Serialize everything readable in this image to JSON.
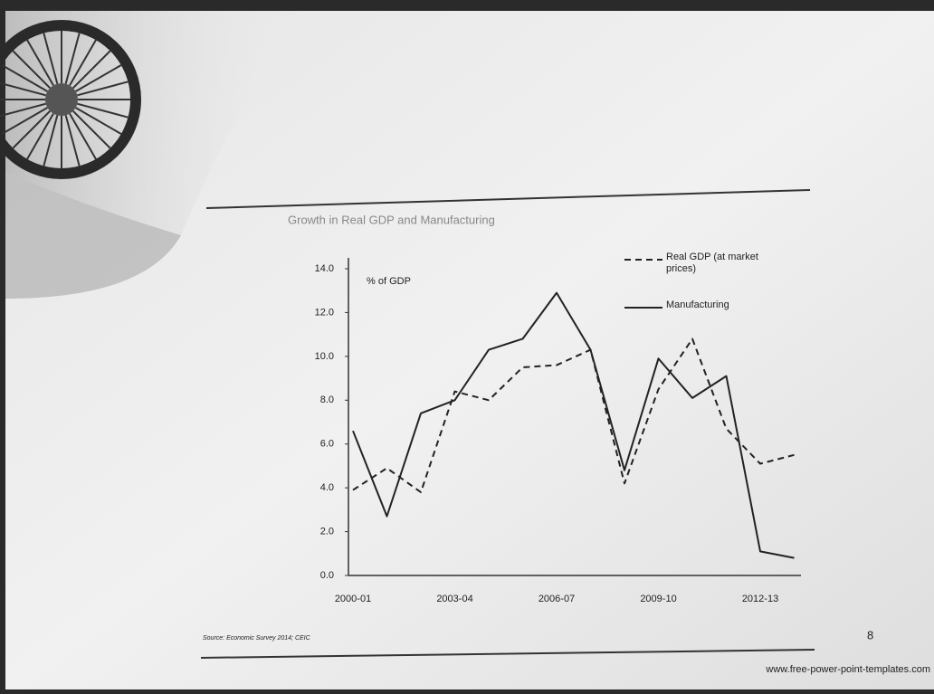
{
  "chart_data": {
    "type": "line",
    "title": "Growth in Real GDP and Manufacturing",
    "y_label": "% of GDP",
    "source": "Source: Economic Survey 2014; CEIC",
    "categories": [
      "2000-01",
      null,
      null,
      "2003-04",
      null,
      null,
      "2006-07",
      null,
      null,
      "2009-10",
      null,
      null,
      "2012-13",
      null
    ],
    "series": [
      {
        "name": "Real GDP (at market prices)",
        "color": "#222222",
        "dash": true,
        "values": [
          3.9,
          4.9,
          3.8,
          8.4,
          8.0,
          9.5,
          9.6,
          10.3,
          4.2,
          8.5,
          10.8,
          6.7,
          5.1,
          5.5
        ]
      },
      {
        "name": "Manufacturing",
        "color": "#222222",
        "dash": false,
        "values": [
          6.6,
          2.7,
          7.4,
          8.0,
          10.3,
          10.8,
          12.9,
          10.3,
          4.8,
          9.9,
          8.1,
          9.1,
          1.1,
          0.8
        ]
      }
    ],
    "ylim": [
      0,
      14
    ],
    "yticks": [
      {
        "value": 0,
        "label": "0.0"
      },
      {
        "value": 2,
        "label": "2.0"
      },
      {
        "value": 4,
        "label": "4.0"
      },
      {
        "value": 6,
        "label": "6.0"
      },
      {
        "value": 8,
        "label": "8.0"
      },
      {
        "value": 10,
        "label": "10.0"
      },
      {
        "value": 12,
        "label": "12.0"
      },
      {
        "value": 14,
        "label": "14.0"
      }
    ],
    "grid": false,
    "legend": "top-right"
  },
  "page_number": "8",
  "website": "www.free-power-point-templates.com"
}
